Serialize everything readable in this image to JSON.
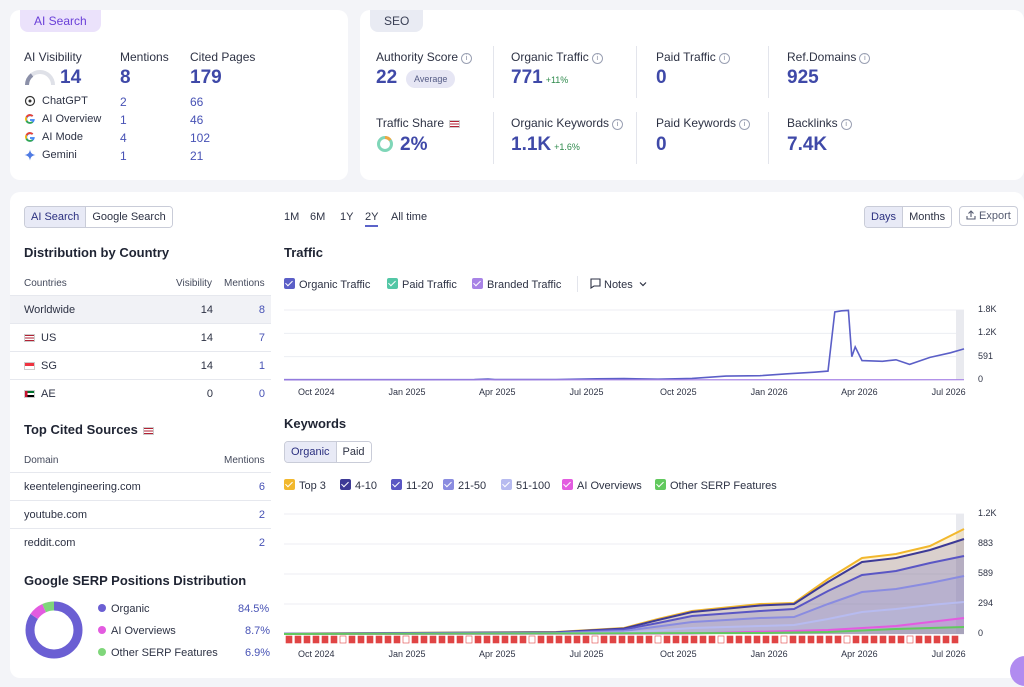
{
  "ai_card": {
    "badge": "AI Search",
    "headers": {
      "visibility": "AI Visibility",
      "mentions": "Mentions",
      "cited": "Cited Pages"
    },
    "totals": {
      "visibility": "14",
      "mentions": "8",
      "cited": "179"
    },
    "rows": [
      {
        "name": "ChatGPT",
        "mentions": "2",
        "cited": "66"
      },
      {
        "name": "AI Overview",
        "mentions": "1",
        "cited": "46"
      },
      {
        "name": "AI Mode",
        "mentions": "4",
        "cited": "102"
      },
      {
        "name": "Gemini",
        "mentions": "1",
        "cited": "21"
      }
    ]
  },
  "seo_card": {
    "badge": "SEO",
    "authority": {
      "label": "Authority Score",
      "value": "22",
      "tag": "Average"
    },
    "organic_traffic": {
      "label": "Organic Traffic",
      "value": "771",
      "delta": "+11%"
    },
    "paid_traffic": {
      "label": "Paid Traffic",
      "value": "0"
    },
    "ref_domains": {
      "label": "Ref.Domains",
      "value": "925"
    },
    "traffic_share": {
      "label": "Traffic Share",
      "value": "2%"
    },
    "organic_keywords": {
      "label": "Organic Keywords",
      "value": "1.1K",
      "delta": "+1.6%"
    },
    "paid_keywords": {
      "label": "Paid Keywords",
      "value": "0"
    },
    "backlinks": {
      "label": "Backlinks",
      "value": "7.4K"
    }
  },
  "left_panel": {
    "tabs": [
      "AI Search",
      "Google Search"
    ],
    "country_title": "Distribution by Country",
    "country_headers": {
      "country": "Countries",
      "visibility": "Visibility",
      "mentions": "Mentions"
    },
    "countries": [
      {
        "name": "Worldwide",
        "visibility": "14",
        "mentions": "8"
      },
      {
        "name": "US",
        "visibility": "14",
        "mentions": "7"
      },
      {
        "name": "SG",
        "visibility": "14",
        "mentions": "1"
      },
      {
        "name": "AE",
        "visibility": "0",
        "mentions": "0"
      }
    ],
    "sources_title": "Top Cited Sources",
    "sources_headers": {
      "domain": "Domain",
      "mentions": "Mentions"
    },
    "sources": [
      {
        "domain": "keentelengineering.com",
        "mentions": "6"
      },
      {
        "domain": "youtube.com",
        "mentions": "2"
      },
      {
        "domain": "reddit.com",
        "mentions": "2"
      }
    ],
    "serp_title": "Google SERP Positions Distribution",
    "serp": [
      {
        "name": "Organic",
        "pct": "84.5%",
        "value": 84.5,
        "color": "#6b5fd3"
      },
      {
        "name": "AI Overviews",
        "pct": "8.7%",
        "value": 8.7,
        "color": "#e35be0"
      },
      {
        "name": "Other SERP Features",
        "pct": "6.9%",
        "value": 6.9,
        "color": "#7fd67a"
      }
    ]
  },
  "toolbar": {
    "periods": [
      "1M",
      "6M",
      "1Y",
      "2Y",
      "All time"
    ],
    "active_period": "2Y",
    "granularity": [
      "Days",
      "Months"
    ],
    "export_label": "Export"
  },
  "traffic": {
    "title": "Traffic",
    "legend": [
      {
        "name": "Organic Traffic",
        "color": "#5b5fc7"
      },
      {
        "name": "Paid Traffic",
        "color": "#53c7a6"
      },
      {
        "name": "Branded Traffic",
        "color": "#a883e6"
      }
    ],
    "notes_label": "Notes"
  },
  "keywords": {
    "title": "Keywords",
    "tabs": [
      "Organic",
      "Paid"
    ],
    "legend": [
      {
        "name": "Top 3",
        "color": "#f2b82d"
      },
      {
        "name": "4-10",
        "color": "#3d3a96"
      },
      {
        "name": "11-20",
        "color": "#5a56c4"
      },
      {
        "name": "21-50",
        "color": "#8a8ce0"
      },
      {
        "name": "51-100",
        "color": "#b7bbf0"
      },
      {
        "name": "AI Overviews",
        "color": "#e35be0"
      },
      {
        "name": "Other SERP Features",
        "color": "#62c95e"
      }
    ]
  },
  "chart_data": [
    {
      "type": "line",
      "title": "Traffic",
      "x_ticks": [
        "Oct 2024",
        "Jan 2025",
        "Apr 2025",
        "Jul 2025",
        "Oct 2025",
        "Jan 2026",
        "Apr 2026",
        "Jul 2026"
      ],
      "y_ticks": [
        "1.8K",
        "1.2K",
        "591",
        "0"
      ],
      "ylim": [
        0,
        1800
      ],
      "series": [
        {
          "name": "Organic Traffic",
          "points": [
            [
              0,
              8
            ],
            [
              0.1,
              8
            ],
            [
              0.2,
              9
            ],
            [
              0.28,
              10
            ],
            [
              0.3,
              25
            ],
            [
              0.31,
              10
            ],
            [
              0.4,
              12
            ],
            [
              0.46,
              30
            ],
            [
              0.5,
              35
            ],
            [
              0.55,
              20
            ],
            [
              0.6,
              40
            ],
            [
              0.65,
              100
            ],
            [
              0.7,
              110
            ],
            [
              0.74,
              160
            ],
            [
              0.78,
              200
            ],
            [
              0.8,
              230
            ],
            [
              0.81,
              1750
            ],
            [
              0.82,
              1780
            ],
            [
              0.83,
              1790
            ],
            [
              0.835,
              600
            ],
            [
              0.84,
              850
            ],
            [
              0.85,
              500
            ],
            [
              0.88,
              480
            ],
            [
              0.9,
              520
            ],
            [
              0.92,
              400
            ],
            [
              0.95,
              580
            ],
            [
              0.98,
              700
            ],
            [
              1,
              800
            ]
          ]
        },
        {
          "name": "Branded Traffic",
          "points": [
            [
              0,
              5
            ],
            [
              0.5,
              6
            ],
            [
              1,
              8
            ]
          ]
        }
      ]
    },
    {
      "type": "area",
      "title": "Keywords",
      "x_ticks": [
        "Oct 2024",
        "Jan 2025",
        "Apr 2025",
        "Jul 2025",
        "Oct 2025",
        "Jan 2026",
        "Apr 2026",
        "Jul 2026"
      ],
      "y_ticks": [
        "1.2K",
        "883",
        "589",
        "294",
        "0"
      ],
      "ylim": [
        0,
        1200
      ],
      "series": [
        {
          "name": "Top 3",
          "points": [
            [
              0,
              5
            ],
            [
              0.4,
              20
            ],
            [
              0.5,
              60
            ],
            [
              0.55,
              150
            ],
            [
              0.6,
              230
            ],
            [
              0.7,
              300
            ],
            [
              0.75,
              310
            ],
            [
              0.8,
              550
            ],
            [
              0.85,
              760
            ],
            [
              0.9,
              800
            ],
            [
              0.95,
              880
            ],
            [
              1,
              1050
            ]
          ]
        },
        {
          "name": "4-10",
          "points": [
            [
              0,
              4
            ],
            [
              0.4,
              18
            ],
            [
              0.5,
              55
            ],
            [
              0.55,
              140
            ],
            [
              0.6,
              220
            ],
            [
              0.7,
              285
            ],
            [
              0.75,
              300
            ],
            [
              0.8,
              520
            ],
            [
              0.85,
              720
            ],
            [
              0.9,
              760
            ],
            [
              0.95,
              840
            ],
            [
              1,
              950
            ]
          ]
        },
        {
          "name": "11-20",
          "points": [
            [
              0,
              3
            ],
            [
              0.4,
              14
            ],
            [
              0.5,
              45
            ],
            [
              0.55,
              110
            ],
            [
              0.6,
              180
            ],
            [
              0.7,
              230
            ],
            [
              0.75,
              250
            ],
            [
              0.8,
              430
            ],
            [
              0.85,
              590
            ],
            [
              0.9,
              630
            ],
            [
              0.95,
              710
            ],
            [
              1,
              780
            ]
          ]
        },
        {
          "name": "21-50",
          "points": [
            [
              0,
              2
            ],
            [
              0.4,
              10
            ],
            [
              0.5,
              30
            ],
            [
              0.55,
              75
            ],
            [
              0.6,
              120
            ],
            [
              0.7,
              160
            ],
            [
              0.75,
              170
            ],
            [
              0.8,
              300
            ],
            [
              0.85,
              420
            ],
            [
              0.9,
              450
            ],
            [
              0.95,
              510
            ],
            [
              1,
              580
            ]
          ]
        },
        {
          "name": "51-100",
          "points": [
            [
              0,
              1
            ],
            [
              0.4,
              5
            ],
            [
              0.5,
              15
            ],
            [
              0.55,
              35
            ],
            [
              0.6,
              60
            ],
            [
              0.7,
              80
            ],
            [
              0.75,
              90
            ],
            [
              0.8,
              150
            ],
            [
              0.85,
              220
            ],
            [
              0.9,
              250
            ],
            [
              0.95,
              290
            ],
            [
              1,
              320
            ]
          ]
        },
        {
          "name": "AI Overviews",
          "points": [
            [
              0,
              0
            ],
            [
              0.6,
              5
            ],
            [
              0.8,
              40
            ],
            [
              0.9,
              80
            ],
            [
              1,
              160
            ]
          ]
        },
        {
          "name": "Other SERP Features",
          "points": [
            [
              0,
              0
            ],
            [
              0.7,
              10
            ],
            [
              0.8,
              20
            ],
            [
              0.9,
              50
            ],
            [
              1,
              70
            ]
          ]
        }
      ]
    }
  ]
}
